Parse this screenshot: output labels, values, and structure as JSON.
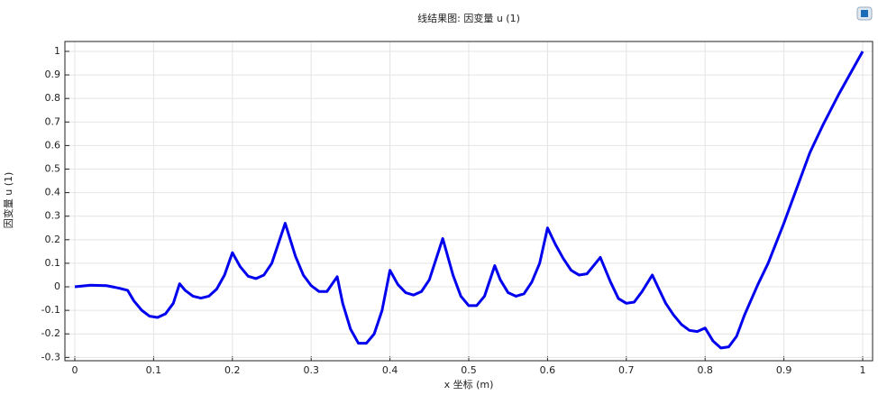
{
  "chart_data": {
    "type": "line",
    "title": "线结果图: 因变量 u (1)",
    "x_label": "x 坐标 (m)",
    "y_label": "因变量 u (1)",
    "color": "#0000ee",
    "grid": true,
    "xlim": [
      -0.0126,
      1.0126
    ],
    "ylim": [
      -0.314,
      1.042
    ],
    "xticks": [
      0,
      0.1,
      0.2,
      0.3,
      0.4,
      0.5,
      0.6,
      0.7,
      0.8,
      0.9,
      1
    ],
    "yticks": [
      -0.3,
      -0.2,
      -0.1,
      0,
      0.1,
      0.2,
      0.3,
      0.4,
      0.5,
      0.6,
      0.7,
      0.8,
      0.9,
      1
    ],
    "x": [
      0,
      0.02,
      0.04,
      0.055,
      0.067,
      0.075,
      0.085,
      0.095,
      0.105,
      0.115,
      0.125,
      0.133,
      0.14,
      0.15,
      0.16,
      0.17,
      0.18,
      0.19,
      0.2,
      0.21,
      0.22,
      0.23,
      0.24,
      0.25,
      0.267,
      0.28,
      0.29,
      0.3,
      0.31,
      0.32,
      0.333,
      0.34,
      0.35,
      0.36,
      0.37,
      0.38,
      0.39,
      0.4,
      0.41,
      0.42,
      0.43,
      0.44,
      0.45,
      0.467,
      0.48,
      0.49,
      0.5,
      0.51,
      0.52,
      0.533,
      0.54,
      0.55,
      0.56,
      0.57,
      0.58,
      0.59,
      0.6,
      0.61,
      0.62,
      0.63,
      0.64,
      0.65,
      0.667,
      0.68,
      0.69,
      0.7,
      0.71,
      0.72,
      0.733,
      0.74,
      0.75,
      0.76,
      0.77,
      0.78,
      0.79,
      0.8,
      0.81,
      0.82,
      0.83,
      0.84,
      0.85,
      0.867,
      0.88,
      0.9,
      0.933,
      0.95,
      0.97,
      1
    ],
    "values": [
      0,
      0.007,
      0.005,
      -0.005,
      -0.015,
      -0.06,
      -0.1,
      -0.125,
      -0.13,
      -0.115,
      -0.07,
      0.013,
      -0.015,
      -0.04,
      -0.048,
      -0.04,
      -0.01,
      0.05,
      0.145,
      0.085,
      0.045,
      0.035,
      0.05,
      0.1,
      0.27,
      0.13,
      0.05,
      0.005,
      -0.02,
      -0.02,
      0.043,
      -0.07,
      -0.18,
      -0.24,
      -0.24,
      -0.2,
      -0.1,
      0.07,
      0.01,
      -0.025,
      -0.035,
      -0.02,
      0.03,
      0.205,
      0.05,
      -0.04,
      -0.08,
      -0.08,
      -0.04,
      0.09,
      0.03,
      -0.025,
      -0.04,
      -0.03,
      0.02,
      0.1,
      0.25,
      0.18,
      0.12,
      0.07,
      0.05,
      0.055,
      0.125,
      0.02,
      -0.05,
      -0.07,
      -0.065,
      -0.02,
      0.05,
      0,
      -0.07,
      -0.12,
      -0.16,
      -0.185,
      -0.19,
      -0.175,
      -0.23,
      -0.26,
      -0.255,
      -0.21,
      -0.12,
      0.01,
      0.1,
      0.27,
      0.57,
      0.69,
      0.82,
      1
    ]
  }
}
